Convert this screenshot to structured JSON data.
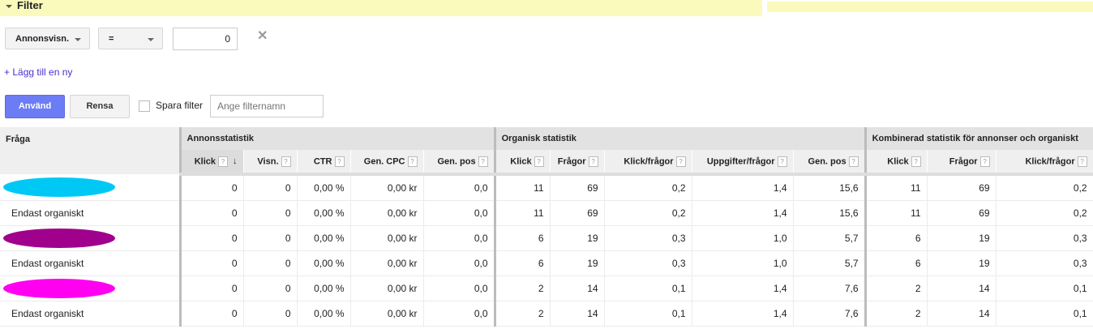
{
  "filter": {
    "title": "Filter",
    "field": "Annonsvisn.",
    "operator": "=",
    "value": "0",
    "add_label": "+ Lägg till en ny",
    "apply": "Använd",
    "clear": "Rensa",
    "save_label": "Spara filter",
    "name_placeholder": "Ange filternamn",
    "remove_icon": "close-icon"
  },
  "table": {
    "groups": [
      "Fråga",
      "Annonsstatistik",
      "Organisk statistik",
      "Kombinerad statistik för annonser och organiskt"
    ],
    "columns": [
      "Klick",
      "Visn.",
      "CTR",
      "Gen. CPC",
      "Gen. pos",
      "Klick",
      "Frågor",
      "Klick/frågor",
      "Uppgifter/frågor",
      "Gen. pos",
      "Klick",
      "Frågor",
      "Klick/frågor"
    ],
    "help": "?",
    "rows": [
      {
        "query": "",
        "redaction_color": "#00c8f5",
        "cells": [
          "0",
          "0",
          "0,00 %",
          "0,00 kr",
          "0,0",
          "11",
          "69",
          "0,2",
          "1,4",
          "15,6",
          "11",
          "69",
          "0,2"
        ]
      },
      {
        "query": "Endast organiskt",
        "cells": [
          "0",
          "0",
          "0,00 %",
          "0,00 kr",
          "0,0",
          "11",
          "69",
          "0,2",
          "1,4",
          "15,6",
          "11",
          "69",
          "0,2"
        ]
      },
      {
        "query": "",
        "redaction_color": "#a0008c",
        "cells": [
          "0",
          "0",
          "0,00 %",
          "0,00 kr",
          "0,0",
          "6",
          "19",
          "0,3",
          "1,0",
          "5,7",
          "6",
          "19",
          "0,3"
        ]
      },
      {
        "query": "Endast organiskt",
        "cells": [
          "0",
          "0",
          "0,00 %",
          "0,00 kr",
          "0,0",
          "6",
          "19",
          "0,3",
          "1,0",
          "5,7",
          "6",
          "19",
          "0,3"
        ]
      },
      {
        "query": "",
        "redaction_color": "#ff00f0",
        "cells": [
          "0",
          "0",
          "0,00 %",
          "0,00 kr",
          "0,0",
          "2",
          "14",
          "0,1",
          "1,4",
          "7,6",
          "2",
          "14",
          "0,1"
        ]
      },
      {
        "query": "Endast organiskt",
        "cells": [
          "0",
          "0",
          "0,00 %",
          "0,00 kr",
          "0,0",
          "2",
          "14",
          "0,1",
          "1,4",
          "7,6",
          "2",
          "14",
          "0,1"
        ]
      }
    ]
  }
}
